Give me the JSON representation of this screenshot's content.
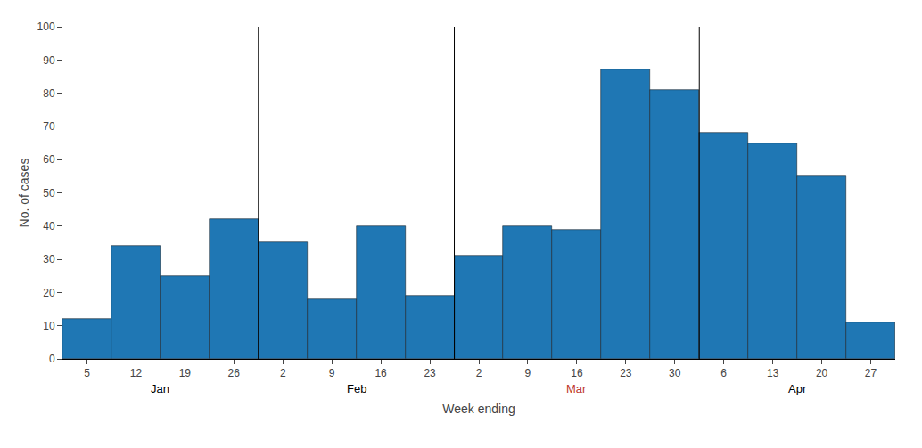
{
  "chart_data": {
    "type": "bar",
    "categories": [
      "5",
      "12",
      "19",
      "26",
      "2",
      "9",
      "16",
      "23",
      "2",
      "9",
      "16",
      "23",
      "30",
      "6",
      "13",
      "20",
      "27"
    ],
    "values": [
      12,
      34,
      25,
      42,
      35,
      18,
      40,
      19,
      31,
      40,
      39,
      87,
      81,
      68,
      65,
      55,
      11
    ],
    "color": "#1f77b4",
    "xlabel": "Week ending",
    "ylabel": "No. of cases",
    "ylim": [
      0,
      100
    ],
    "yticks": [
      0,
      10,
      20,
      30,
      40,
      50,
      60,
      70,
      80,
      90,
      100
    ],
    "grid": false,
    "annotations": [
      {
        "text": "Jan",
        "color": "black"
      },
      {
        "text": "Feb",
        "color": "black"
      },
      {
        "text": "Mar",
        "color": "#c0392b"
      },
      {
        "text": "Apr",
        "color": "black"
      }
    ]
  }
}
